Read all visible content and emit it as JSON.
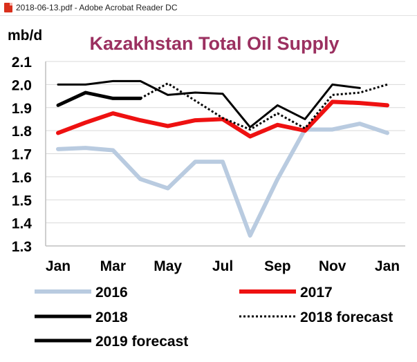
{
  "window": {
    "title": "2018-06-13.pdf - Adobe Acrobat Reader DC"
  },
  "chart_data": {
    "type": "line",
    "title": "Kazakhstan Total Oil Supply",
    "ylabel": "mb/d",
    "xlabel": "",
    "ylim": [
      1.3,
      2.1
    ],
    "yticks": [
      "1.3",
      "1.4",
      "1.5",
      "1.6",
      "1.7",
      "1.8",
      "1.9",
      "2.0",
      "2.1"
    ],
    "xtick_labels": [
      "Jan",
      "Mar",
      "May",
      "Jul",
      "Sep",
      "Nov",
      "Jan"
    ],
    "categories": [
      "Jan",
      "Feb",
      "Mar",
      "Apr",
      "May",
      "Jun",
      "Jul",
      "Aug",
      "Sep",
      "Oct",
      "Nov",
      "Dec",
      "Jan"
    ],
    "series": [
      {
        "name": "2016",
        "color": "#b9cbe0",
        "style": "solid",
        "width": 6,
        "values": [
          1.72,
          1.725,
          1.715,
          1.59,
          1.55,
          1.665,
          1.665,
          1.345,
          1.59,
          1.805,
          1.805,
          1.83,
          1.79
        ]
      },
      {
        "name": "2017",
        "color": "#ee1111",
        "style": "solid",
        "width": 6,
        "values": [
          1.79,
          1.835,
          1.875,
          1.845,
          1.82,
          1.845,
          1.85,
          1.775,
          1.825,
          1.8,
          1.925,
          1.92,
          1.91
        ]
      },
      {
        "name": "2018",
        "color": "#000000",
        "style": "solid",
        "width": 5,
        "values": [
          1.91,
          1.965,
          1.94,
          1.94,
          null,
          null,
          null,
          null,
          null,
          null,
          null,
          null,
          null
        ]
      },
      {
        "name": "2018 forecast",
        "color": "#000000",
        "style": "dotted",
        "width": 3,
        "values": [
          null,
          null,
          null,
          1.94,
          2.005,
          1.93,
          1.855,
          1.805,
          1.875,
          1.81,
          1.955,
          1.965,
          2.0
        ]
      },
      {
        "name": "2019 forecast",
        "color": "#000000",
        "style": "solid",
        "width": 3,
        "values": [
          2.0,
          2.0,
          2.015,
          2.015,
          1.955,
          1.965,
          1.96,
          1.815,
          1.91,
          1.85,
          2.0,
          1.985,
          null
        ]
      }
    ],
    "grid": "horizontal",
    "legend_position": "bottom"
  }
}
